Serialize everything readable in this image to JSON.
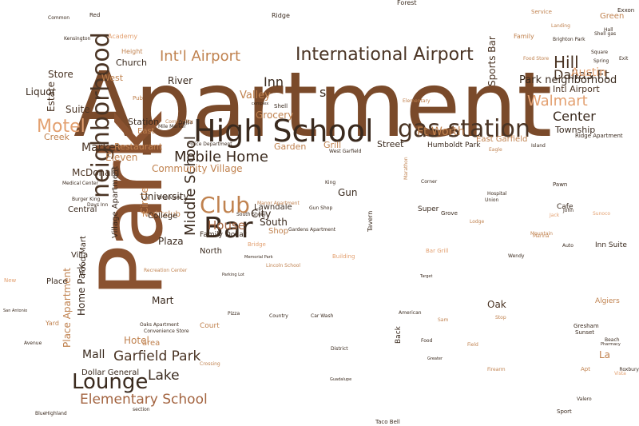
{
  "colors": {
    "background": "#ffffff",
    "palette": [
      "#7a4a2a",
      "#3a2a1e",
      "#c0824f",
      "#e3a070",
      "#f0c090",
      "#a36440"
    ]
  },
  "words": [
    {
      "text": "Apartment",
      "color": "#7a4a2a"
    },
    {
      "text": "Park",
      "color": "#8a5230"
    },
    {
      "text": "High School",
      "color": "#3a2a1e"
    },
    {
      "text": "gas station",
      "color": "#4a3424"
    },
    {
      "text": "neighborhood",
      "color": "#4a3424"
    },
    {
      "text": "International Airport",
      "color": "#4a3424"
    },
    {
      "text": "Int'l Airport",
      "color": "#c0824f"
    },
    {
      "text": "Walmart",
      "color": "#e3a070"
    },
    {
      "text": "Motel",
      "color": "#e3a070"
    },
    {
      "text": "Club",
      "color": "#c0824f"
    },
    {
      "text": "Bar",
      "color": "#3a2a1e"
    },
    {
      "text": "Lounge",
      "color": "#3a2a1e"
    },
    {
      "text": "Middle School",
      "color": "#3a2a1e"
    },
    {
      "text": "Elementary School",
      "color": "#a36440"
    },
    {
      "text": "Garfield Park",
      "color": "#4a3424"
    },
    {
      "text": "Mobile Home",
      "color": "#3a2a1e"
    },
    {
      "text": "Dallas Ft",
      "color": "#4a3424"
    },
    {
      "text": "Hill",
      "color": "#4a3424"
    },
    {
      "text": "Austin",
      "color": "#e3a070"
    },
    {
      "text": "Park neighborhood",
      "color": "#3a2a1e"
    },
    {
      "text": "Center",
      "color": "#3a2a1e"
    },
    {
      "text": "Ft Worth",
      "color": "#c0824f"
    },
    {
      "text": "Lake",
      "color": "#3a2a1e"
    },
    {
      "text": "Mall",
      "color": "#3a2a1e"
    },
    {
      "text": "House",
      "color": "#a36440"
    },
    {
      "text": "City",
      "color": "#3a2a1e"
    },
    {
      "text": "Market",
      "color": "#4a3424"
    },
    {
      "text": "McDonald",
      "color": "#4a3424"
    },
    {
      "text": "Store",
      "color": "#4a3424"
    },
    {
      "text": "West",
      "color": "#c0824f"
    },
    {
      "text": "Inn",
      "color": "#3a2a1e"
    },
    {
      "text": "Valley",
      "color": "#c0824f"
    },
    {
      "text": "Grocery",
      "color": "#c0824f"
    },
    {
      "text": "Liquor",
      "color": "#3a2a1e"
    },
    {
      "text": "Estate",
      "color": "#4a3424"
    },
    {
      "text": "Suite",
      "color": "#4a3424"
    },
    {
      "text": "Creek",
      "color": "#c0824f"
    },
    {
      "text": "Restaurant",
      "color": "#c0824f"
    },
    {
      "text": "Eleven",
      "color": "#c0824f"
    },
    {
      "text": "Station",
      "color": "#3a2a1e"
    },
    {
      "text": "Garden",
      "color": "#c0824f"
    },
    {
      "text": "Grill",
      "color": "#c0824f"
    },
    {
      "text": "Street",
      "color": "#3a2a1e"
    },
    {
      "text": "Community Village",
      "color": "#c0824f"
    },
    {
      "text": "Circle",
      "color": "#c0824f"
    },
    {
      "text": "University",
      "color": "#3a2a1e"
    },
    {
      "text": "Nightclub",
      "color": "#c0824f"
    },
    {
      "text": "College",
      "color": "#3a2a1e"
    },
    {
      "text": "Plaza",
      "color": "#3a2a1e"
    },
    {
      "text": "Village Apartment",
      "color": "#3a2a1e"
    },
    {
      "text": "Home Park",
      "color": "#3a2a1e"
    },
    {
      "text": "Food Mart",
      "color": "#3a2a1e"
    },
    {
      "text": "Hotel",
      "color": "#c0824f"
    },
    {
      "text": "Place Apartment",
      "color": "#c0824f"
    },
    {
      "text": "Mart",
      "color": "#3a2a1e"
    },
    {
      "text": "area",
      "color": "#c0824f"
    },
    {
      "text": "Dollar General",
      "color": "#3a2a1e"
    },
    {
      "text": "Oak",
      "color": "#4a3424"
    },
    {
      "text": "La",
      "color": "#c0824f"
    },
    {
      "text": "Township",
      "color": "#3a2a1e"
    },
    {
      "text": "Sports Bar",
      "color": "#4a3424"
    },
    {
      "text": "Intl Airport",
      "color": "#4a3424"
    },
    {
      "text": "East Garfield",
      "color": "#c0824f"
    },
    {
      "text": "Gun",
      "color": "#3a2a1e"
    },
    {
      "text": "South",
      "color": "#3a2a1e"
    },
    {
      "text": "Shop",
      "color": "#c0824f"
    },
    {
      "text": "Lawndale",
      "color": "#3a2a1e"
    },
    {
      "text": "Place",
      "color": "#3a2a1e"
    },
    {
      "text": "Villa",
      "color": "#3a2a1e"
    },
    {
      "text": "Central",
      "color": "#3a2a1e"
    },
    {
      "text": "North",
      "color": "#3a2a1e"
    },
    {
      "text": "River",
      "color": "#3a2a1e"
    },
    {
      "text": "Church",
      "color": "#3a2a1e"
    },
    {
      "text": "Height",
      "color": "#c0824f"
    },
    {
      "text": "s",
      "color": "#3a2a1e"
    },
    {
      "text": "Humboldt Park",
      "color": "#3a2a1e"
    },
    {
      "text": "Family Dollar",
      "color": "#3a2a1e"
    },
    {
      "text": "Cafe",
      "color": "#3a2a1e"
    },
    {
      "text": "Super",
      "color": "#3a2a1e"
    },
    {
      "text": "Inn Suite",
      "color": "#3a2a1e"
    },
    {
      "text": "Algiers",
      "color": "#c0824f"
    },
    {
      "text": "Gresham",
      "color": "#3a2a1e"
    },
    {
      "text": "Sunset",
      "color": "#3a2a1e"
    },
    {
      "text": "Court",
      "color": "#c0824f"
    },
    {
      "text": "Tavern",
      "color": "#3a2a1e"
    },
    {
      "text": "Back",
      "color": "#3a2a1e"
    },
    {
      "text": "Sport",
      "color": "#3a2a1e"
    },
    {
      "text": "Forest",
      "color": "#3a2a1e"
    },
    {
      "text": "Exxon",
      "color": "#3a2a1e"
    },
    {
      "text": "Green",
      "color": "#c0824f"
    },
    {
      "text": "Family",
      "color": "#c0824f"
    },
    {
      "text": "Academy",
      "color": "#e3a070"
    },
    {
      "text": "Shell",
      "color": "#3a2a1e"
    },
    {
      "text": "Ridge",
      "color": "#3a2a1e"
    },
    {
      "text": "Kensington",
      "color": "#3a2a1e"
    },
    {
      "text": "Red",
      "color": "#3a2a1e"
    },
    {
      "text": "Common",
      "color": "#3a2a1e"
    },
    {
      "text": "Service",
      "color": "#c0824f"
    },
    {
      "text": "Pawn",
      "color": "#3a2a1e"
    },
    {
      "text": "Grove",
      "color": "#3a2a1e"
    },
    {
      "text": "Corner",
      "color": "#3a2a1e"
    },
    {
      "text": "Hospital",
      "color": "#3a2a1e"
    },
    {
      "text": "Union",
      "color": "#3a2a1e"
    },
    {
      "text": "Lodge",
      "color": "#c0824f"
    },
    {
      "text": "Marathon",
      "color": "#c0824f"
    },
    {
      "text": "Country",
      "color": "#3a2a1e"
    },
    {
      "text": "Pizza",
      "color": "#3a2a1e"
    },
    {
      "text": "Car Wash",
      "color": "#3a2a1e"
    },
    {
      "text": "Food",
      "color": "#3a2a1e"
    },
    {
      "text": "American",
      "color": "#3a2a1e"
    },
    {
      "text": "Taco Bell",
      "color": "#3a2a1e"
    },
    {
      "text": "Highland",
      "color": "#3a2a1e"
    },
    {
      "text": "Blue",
      "color": "#3a2a1e"
    },
    {
      "text": "Yard",
      "color": "#c0824f"
    },
    {
      "text": "New",
      "color": "#e3a070"
    },
    {
      "text": "San Antonio",
      "color": "#3a2a1e"
    },
    {
      "text": "Avenue",
      "color": "#3a2a1e"
    },
    {
      "text": "Vista",
      "color": "#e3a070"
    },
    {
      "text": "Beach",
      "color": "#3a2a1e"
    },
    {
      "text": "Pharmacy",
      "color": "#3a2a1e"
    },
    {
      "text": "Valero",
      "color": "#3a2a1e"
    },
    {
      "text": "Roxbury",
      "color": "#3a2a1e"
    },
    {
      "text": "Apt",
      "color": "#c0824f"
    },
    {
      "text": "Shell gas",
      "color": "#3a2a1e"
    },
    {
      "text": "Hall",
      "color": "#3a2a1e"
    },
    {
      "text": "Brighton Park",
      "color": "#3a2a1e"
    },
    {
      "text": "Square",
      "color": "#3a2a1e"
    },
    {
      "text": "Spring",
      "color": "#3a2a1e"
    },
    {
      "text": "Exit",
      "color": "#3a2a1e"
    },
    {
      "text": "Landing",
      "color": "#c0824f"
    },
    {
      "text": "Food Store",
      "color": "#c0824f"
    },
    {
      "text": "Island",
      "color": "#3a2a1e"
    },
    {
      "text": "Ridge Apartment",
      "color": "#3a2a1e"
    },
    {
      "text": "Eagle",
      "color": "#c0824f"
    },
    {
      "text": "Pub",
      "color": "#c0824f"
    },
    {
      "text": "Delta",
      "color": "#3a2a1e"
    },
    {
      "text": "Mile Marker",
      "color": "#3a2a1e"
    },
    {
      "text": "Police Department",
      "color": "#3a2a1e"
    },
    {
      "text": "West Garfield",
      "color": "#3a2a1e"
    },
    {
      "text": "King",
      "color": "#3a2a1e"
    },
    {
      "text": "Manor Apartment",
      "color": "#c0824f"
    },
    {
      "text": "Gun Shop",
      "color": "#3a2a1e"
    },
    {
      "text": "Community",
      "color": "#c0824f"
    },
    {
      "text": "Medical Center",
      "color": "#3a2a1e"
    },
    {
      "text": "Burger King",
      "color": "#3a2a1e"
    },
    {
      "text": "Days Inn",
      "color": "#3a2a1e"
    },
    {
      "text": "Recreation Center",
      "color": "#c0824f"
    },
    {
      "text": "Riverview",
      "color": "#3a2a1e"
    },
    {
      "text": "South Shore",
      "color": "#3a2a1e"
    },
    {
      "text": "Gardens Apartment",
      "color": "#3a2a1e"
    },
    {
      "text": "Convenience Store",
      "color": "#3a2a1e"
    },
    {
      "text": "Oaks Apartment",
      "color": "#3a2a1e"
    },
    {
      "text": "Bridge",
      "color": "#e3a070"
    },
    {
      "text": "Building",
      "color": "#e3a070"
    },
    {
      "text": "Bar Grill",
      "color": "#e3a070"
    },
    {
      "text": "Wendy",
      "color": "#3a2a1e"
    },
    {
      "text": "Marina",
      "color": "#c0824f"
    },
    {
      "text": "Mountain",
      "color": "#c0824f"
    },
    {
      "text": "Auto",
      "color": "#3a2a1e"
    },
    {
      "text": "Jack",
      "color": "#e3a070"
    },
    {
      "text": "Sunoco",
      "color": "#e3a070"
    },
    {
      "text": "John",
      "color": "#3a2a1e"
    },
    {
      "text": "Parking Lot",
      "color": "#3a2a1e"
    },
    {
      "text": "Target",
      "color": "#3a2a1e"
    },
    {
      "text": "Firearm",
      "color": "#c0824f"
    },
    {
      "text": "Sam",
      "color": "#c0824f"
    },
    {
      "text": "Field",
      "color": "#c0824f"
    },
    {
      "text": "Stop",
      "color": "#c0824f"
    },
    {
      "text": "Deli",
      "color": "#3a2a1e"
    },
    {
      "text": "Elementary",
      "color": "#c0824f"
    },
    {
      "text": "complex",
      "color": "#3a2a1e"
    },
    {
      "text": "East",
      "color": "#c0824f"
    },
    {
      "text": "Guadalupe",
      "color": "#3a2a1e"
    },
    {
      "text": "Greater",
      "color": "#3a2a1e"
    },
    {
      "text": "Crossing",
      "color": "#c0824f"
    },
    {
      "text": "section",
      "color": "#3a2a1e"
    },
    {
      "text": "District",
      "color": "#3a2a1e"
    },
    {
      "text": "Memorial Park",
      "color": "#3a2a1e"
    },
    {
      "text": "Lincoln School",
      "color": "#c0824f"
    }
  ]
}
